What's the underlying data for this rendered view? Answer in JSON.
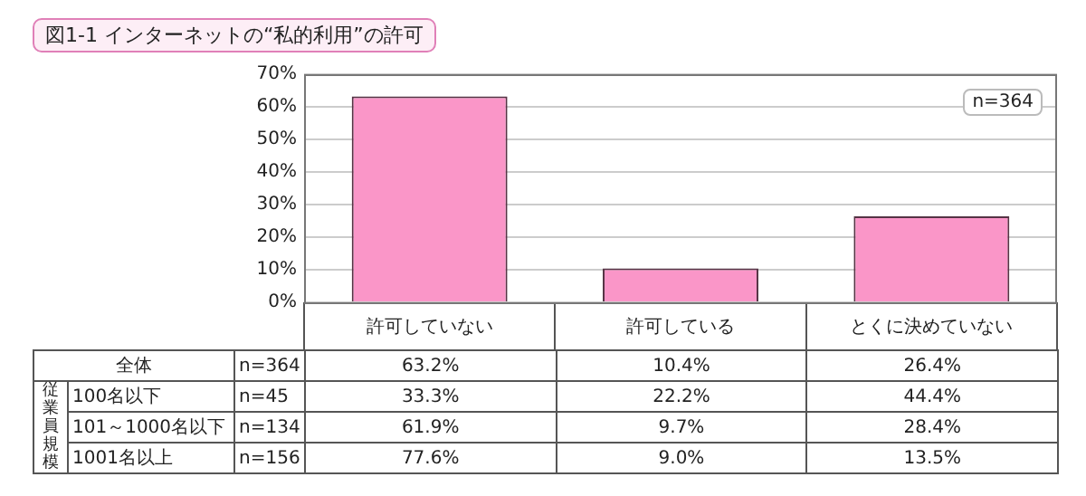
{
  "chart_data": {
    "type": "bar",
    "title": "図1-1 インターネットの“私的利用”の許可",
    "categories": [
      "許可していない",
      "許可している",
      "とくに決めていない"
    ],
    "series": [
      {
        "name": "全体",
        "color": "#fa96c8",
        "values": [
          63.2,
          10.4,
          26.4
        ],
        "value_labels": [
          "63.2%",
          "10.4%",
          "26.4%"
        ]
      }
    ],
    "ylim": [
      0,
      70
    ],
    "yticks": [
      {
        "value": 0,
        "label": "0%"
      },
      {
        "value": 10,
        "label": "10%"
      },
      {
        "value": 20,
        "label": "20%"
      },
      {
        "value": 30,
        "label": "30%"
      },
      {
        "value": 40,
        "label": "40%"
      },
      {
        "value": 50,
        "label": "50%"
      },
      {
        "value": 60,
        "label": "60%"
      },
      {
        "value": 70,
        "label": "70%"
      }
    ],
    "grid": "y",
    "legend": false,
    "annotations": [
      "n=364",
      "n=364",
      "従業員規模",
      "100名以下",
      "n=45",
      "33.3%",
      "22.2%",
      "44.4%",
      "101～1000名以下",
      "n=134",
      "61.9%",
      "9.7%",
      "28.4%",
      "1001名以上",
      "n=156",
      "77.6%",
      "9.0%",
      "13.5%"
    ]
  }
}
